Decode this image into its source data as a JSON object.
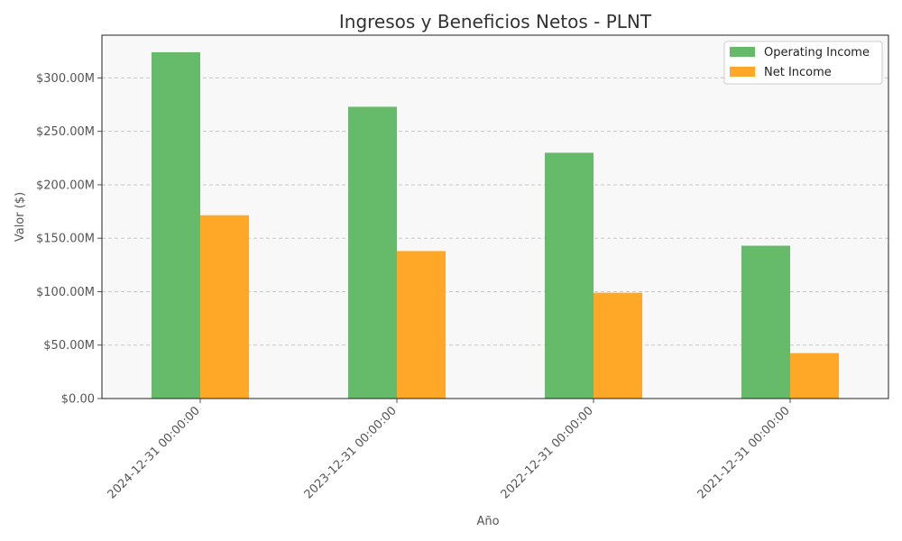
{
  "chart_data": {
    "type": "bar",
    "title": "Ingresos y Beneficios Netos - PLNT",
    "xlabel": "Año",
    "ylabel": "Valor ($)",
    "categories": [
      "2024-12-31 00:00:00",
      "2023-12-31 00:00:00",
      "2022-12-31 00:00:00",
      "2021-12-31 00:00:00"
    ],
    "series": [
      {
        "name": "Operating Income",
        "color": "#66bb6a",
        "values": [
          324000000,
          273000000,
          230000000,
          143000000
        ]
      },
      {
        "name": "Net Income",
        "color": "#ffa726",
        "values": [
          171500000,
          138000000,
          99000000,
          42500000
        ]
      }
    ],
    "ylim": [
      0,
      340000000
    ],
    "yticks": [
      0,
      50000000,
      100000000,
      150000000,
      200000000,
      250000000,
      300000000
    ],
    "ytick_labels": [
      "$0.00",
      "$50.00M",
      "$100.00M",
      "$150.00M",
      "$200.00M",
      "$250.00M",
      "$300.00M"
    ],
    "grid": {
      "y": true,
      "style": "dashed",
      "color": "#c8c8c8"
    },
    "background": "#f8f8f8",
    "legend_position": "top-right"
  }
}
